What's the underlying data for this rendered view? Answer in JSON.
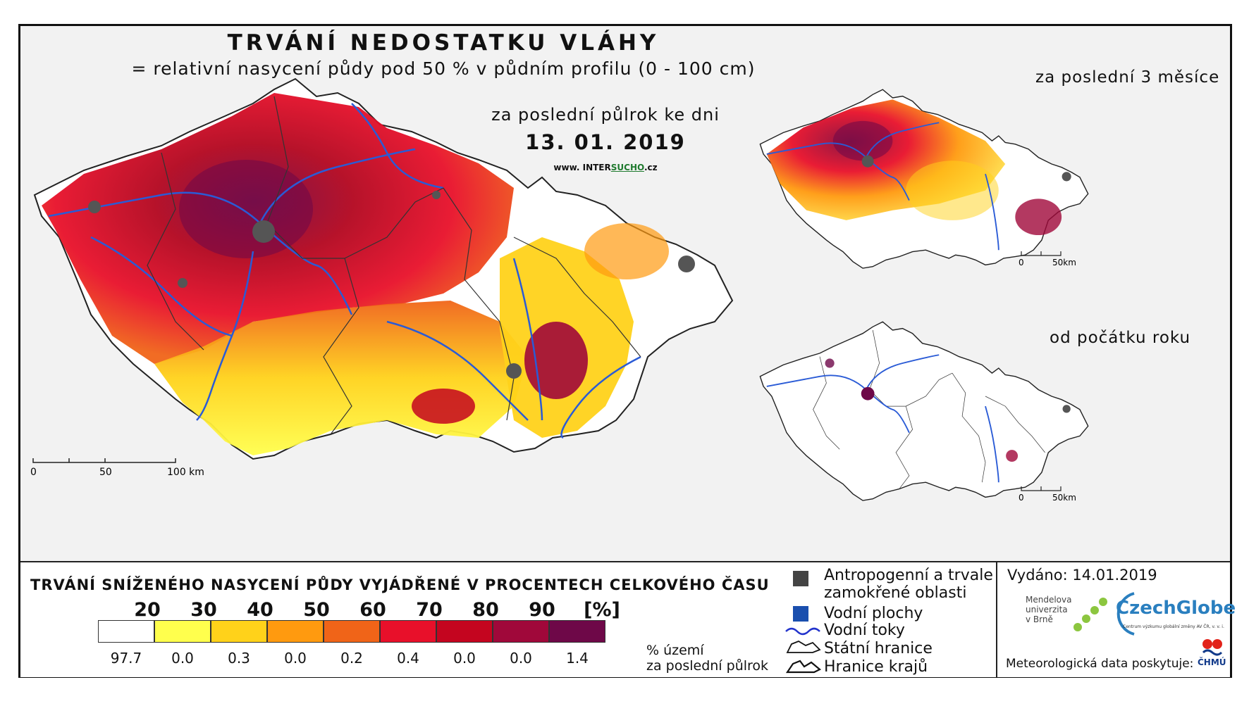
{
  "map": {
    "title": "TRVÁNÍ NEDOSTATKU VLÁHY",
    "subtitle": "= relativní nasycení půdy pod 50 % v půdním profilu (0 - 100 cm)",
    "period_label": "za poslední půlrok ke dni",
    "date": "13. 01. 2019",
    "website_prefix": "www. INTER",
    "website_highlight": "SUCHO",
    "website_suffix": ".cz",
    "inset_3m_label": "za poslední 3 měsíce",
    "inset_year_label": "od počátku roku",
    "scale_main": [
      "0",
      "50",
      "100 km"
    ],
    "scale_inset": [
      "0",
      "50km"
    ]
  },
  "legend": {
    "title": "TRVÁNÍ SNÍŽENÉHO NASYCENÍ PŮDY VYJÁDŘENÉ V PROCENTECH CELKOVÉHO ČASU",
    "thresholds": [
      "20",
      "30",
      "40",
      "50",
      "60",
      "70",
      "80",
      "90",
      "[%]"
    ],
    "bins": [
      {
        "color": "#ffffff",
        "percent": "97.7"
      },
      {
        "color": "#ffff4d",
        "percent": "0.0"
      },
      {
        "color": "#ffd21a",
        "percent": "0.3"
      },
      {
        "color": "#ff9a0f",
        "percent": "0.0"
      },
      {
        "color": "#f06418",
        "percent": "0.2"
      },
      {
        "color": "#e8102a",
        "percent": "0.4"
      },
      {
        "color": "#c4051f",
        "percent": "0.0"
      },
      {
        "color": "#a0083a",
        "percent": "0.0"
      },
      {
        "color": "#6e0848",
        "percent": "1.4"
      }
    ],
    "percent_note_1": "% území",
    "percent_note_2": "za poslední půlrok",
    "symbols": [
      {
        "label": "Antropogenní a trvale",
        "label2": "zamokřené oblasti",
        "color": "#444444"
      },
      {
        "label": "Vodní plochy",
        "color": "#1a4fae"
      },
      {
        "label": "Vodní toky",
        "color": "#2233cc"
      },
      {
        "label": "Státní hranice",
        "color": "#111111"
      },
      {
        "label": "Hranice krajů",
        "color": "#111111"
      }
    ]
  },
  "credits": {
    "issued": "Vydáno: 14.01.2019",
    "mendel_1": "Mendelova",
    "mendel_2": "univerzita",
    "mendel_3": "v Brně",
    "czechglobe": "CzechGlobe",
    "czechglobe_sub": "Centrum výzkumu globální změny AV ČR, v. v. i.",
    "meteo": "Meteorologická data poskytuje:",
    "chmu": "ČHMÚ"
  }
}
